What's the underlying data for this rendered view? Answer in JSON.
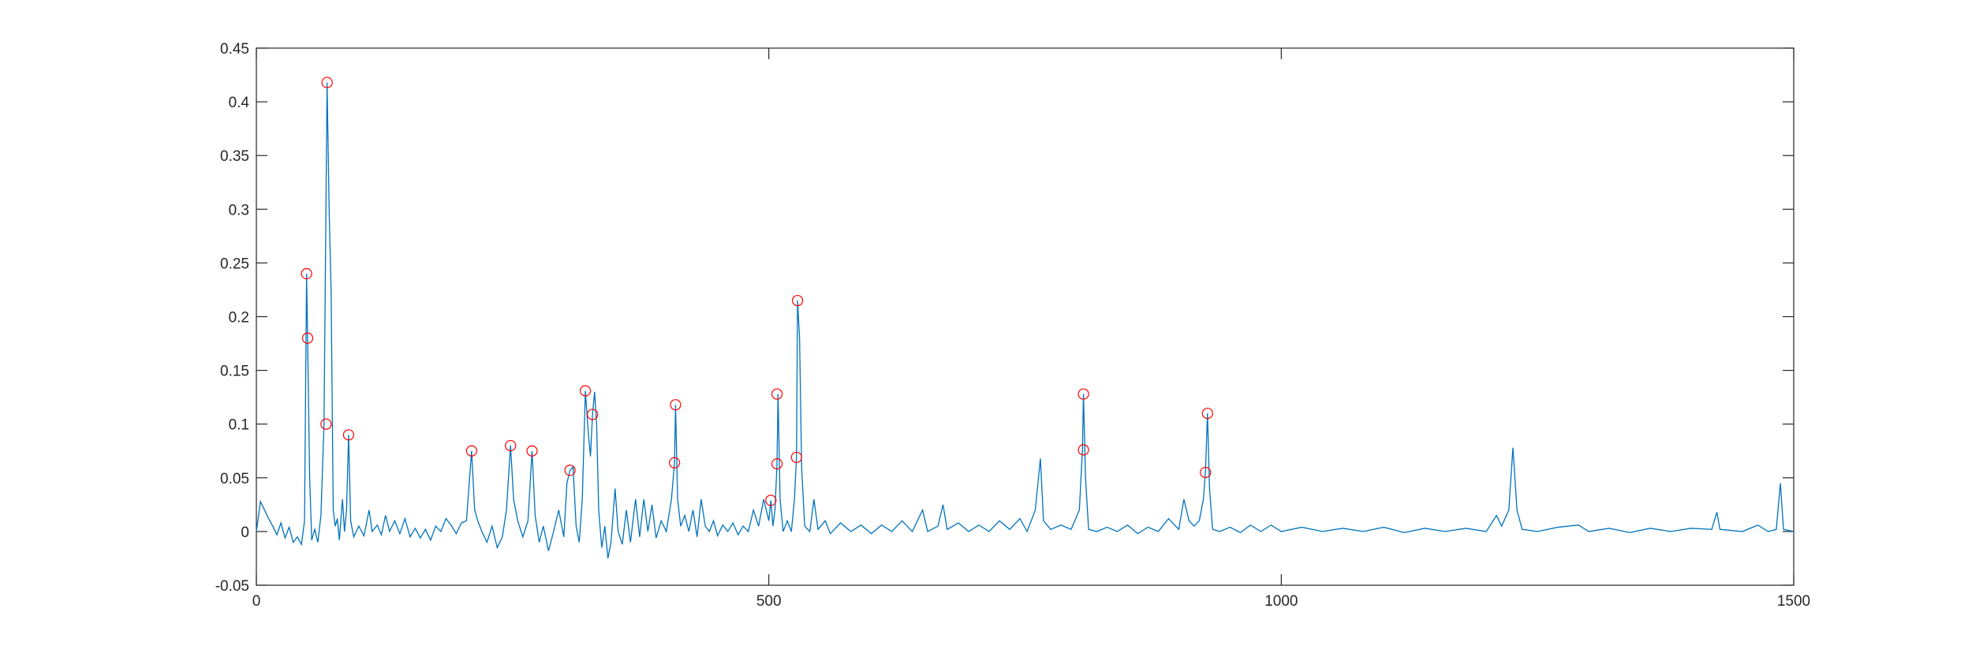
{
  "chart_data": {
    "type": "line",
    "x": [
      0,
      4,
      8,
      12,
      16,
      20,
      24,
      28,
      32,
      36,
      40,
      44,
      47,
      49,
      50,
      52,
      54,
      57,
      60,
      63,
      66,
      69,
      71,
      73,
      75,
      77,
      79,
      81,
      84,
      86,
      88,
      90,
      92,
      95,
      100,
      105,
      110,
      113,
      118,
      122,
      126,
      130,
      135,
      140,
      145,
      150,
      155,
      160,
      165,
      170,
      175,
      180,
      185,
      190,
      195,
      200,
      205,
      210,
      213,
      216,
      220,
      225,
      230,
      235,
      240,
      244,
      248,
      251,
      255,
      260,
      265,
      269,
      272,
      276,
      280,
      285,
      290,
      295,
      300,
      303,
      306,
      309,
      312,
      315,
      318,
      321,
      324,
      326,
      328,
      330,
      332,
      334,
      337,
      340,
      343,
      346,
      350,
      353,
      357,
      361,
      365,
      370,
      374,
      378,
      382,
      386,
      390,
      395,
      400,
      405,
      408,
      409,
      411,
      414,
      418,
      422,
      426,
      430,
      434,
      438,
      442,
      446,
      450,
      455,
      460,
      465,
      470,
      475,
      480,
      485,
      490,
      495,
      500,
      502,
      504,
      506,
      508,
      509,
      511,
      514,
      518,
      522,
      525,
      527,
      528,
      530,
      532,
      535,
      540,
      544,
      548,
      555,
      560,
      570,
      580,
      590,
      600,
      610,
      620,
      630,
      640,
      650,
      655,
      665,
      670,
      674,
      685,
      695,
      705,
      715,
      725,
      735,
      745,
      752,
      760,
      765,
      768,
      775,
      785,
      795,
      803,
      806,
      807,
      809,
      812,
      820,
      830,
      840,
      850,
      860,
      870,
      880,
      890,
      900,
      905,
      910,
      915,
      920,
      924,
      926,
      928,
      930,
      933,
      940,
      950,
      960,
      970,
      980,
      990,
      1000,
      1020,
      1040,
      1060,
      1080,
      1100,
      1120,
      1140,
      1160,
      1180,
      1200,
      1210,
      1215,
      1222,
      1226,
      1230,
      1235,
      1250,
      1270,
      1290,
      1300,
      1320,
      1340,
      1360,
      1380,
      1400,
      1420,
      1425,
      1428,
      1450,
      1465,
      1475,
      1483,
      1487,
      1490,
      1500
    ],
    "series": [
      {
        "color": "#0072bd",
        "values": [
          0,
          0.028,
          0.02,
          0.012,
          0.005,
          -0.003,
          0.008,
          -0.006,
          0.004,
          -0.01,
          -0.005,
          -0.012,
          0.01,
          0.24,
          0.18,
          0.05,
          -0.008,
          0.002,
          -0.01,
          0.015,
          0.1,
          0.418,
          0.3,
          0.22,
          0.02,
          0.005,
          0.012,
          -0.008,
          0.03,
          0,
          0.02,
          0.09,
          0.01,
          -0.005,
          0.005,
          -0.004,
          0.02,
          0,
          0.006,
          -0.003,
          0.015,
          0,
          0.01,
          -0.002,
          0.012,
          -0.005,
          0.003,
          -0.006,
          0.002,
          -0.008,
          0.005,
          0,
          0.012,
          0.006,
          -0.002,
          0.008,
          0.01,
          0.075,
          0.02,
          0.01,
          0,
          -0.01,
          0.005,
          -0.015,
          -0.005,
          0.02,
          0.08,
          0.03,
          0.01,
          -0.005,
          0.01,
          0.075,
          0.015,
          -0.01,
          0.005,
          -0.018,
          0,
          0.02,
          -0.005,
          0.045,
          0.057,
          0.06,
          0.005,
          -0.01,
          0.03,
          0.131,
          0.09,
          0.07,
          0.109,
          0.13,
          0.1,
          0.02,
          -0.015,
          0.005,
          -0.025,
          -0.01,
          0.04,
          0,
          -0.012,
          0.02,
          -0.01,
          0.03,
          -0.005,
          0.03,
          0,
          0.025,
          -0.006,
          0.01,
          0,
          0.03,
          0.064,
          0.118,
          0.03,
          0.005,
          0.015,
          0,
          0.02,
          -0.005,
          0.03,
          0.005,
          0,
          0.01,
          -0.004,
          0.006,
          0,
          0.008,
          -0.003,
          0.005,
          0,
          0.02,
          0.005,
          0.03,
          0.01,
          0.029,
          0.005,
          0.02,
          0.063,
          0.128,
          0.03,
          0,
          0.01,
          0,
          0.03,
          0.069,
          0.215,
          0.18,
          0.06,
          0.005,
          0,
          0.03,
          0.002,
          0.01,
          -0.002,
          0.008,
          0,
          0.006,
          -0.002,
          0.006,
          0,
          0.01,
          0,
          0.02,
          0,
          0.005,
          0.025,
          0.002,
          0.008,
          0,
          0.006,
          0,
          0.01,
          0.002,
          0.012,
          0,
          0.02,
          0.068,
          0.01,
          0.002,
          0.006,
          0.002,
          0.02,
          0.076,
          0.128,
          0.05,
          0.002,
          0,
          0.004,
          0,
          0.006,
          -0.002,
          0.004,
          0,
          0.012,
          0.002,
          0.03,
          0.01,
          0.005,
          0.01,
          0.03,
          0.055,
          0.11,
          0.04,
          0.002,
          0,
          0.004,
          -0.001,
          0.006,
          0,
          0.006,
          0,
          0.004,
          0,
          0.003,
          0,
          0.004,
          -0.001,
          0.003,
          0,
          0.003,
          0,
          0.015,
          0.005,
          0.02,
          0.078,
          0.02,
          0.002,
          0,
          0.004,
          0.006,
          0,
          0.003,
          -0.001,
          0.003,
          0,
          0.003,
          0.002,
          0.018,
          0.002,
          0,
          0.006,
          0,
          0.002,
          0.045,
          0.002,
          0
        ]
      }
    ],
    "markers": {
      "color": "#ff0000",
      "x": [
        49,
        50,
        69,
        68,
        90,
        210,
        248,
        269,
        306,
        321,
        328,
        409,
        408,
        502,
        508,
        508,
        527,
        528,
        807,
        807,
        928,
        926
      ],
      "values": [
        0.24,
        0.18,
        0.418,
        0.1,
        0.09,
        0.075,
        0.08,
        0.075,
        0.057,
        0.131,
        0.109,
        0.118,
        0.064,
        0.029,
        0.128,
        0.063,
        0.069,
        0.215,
        0.128,
        0.076,
        0.11,
        0.055
      ]
    },
    "xlim": [
      0,
      1500
    ],
    "xticks": [
      0,
      500,
      1000,
      1500
    ],
    "ylim": [
      -0.05,
      0.45
    ],
    "yticks": [
      -0.05,
      0,
      0.05,
      0.1,
      0.15,
      0.2,
      0.25,
      0.3,
      0.35,
      0.4,
      0.45
    ]
  }
}
